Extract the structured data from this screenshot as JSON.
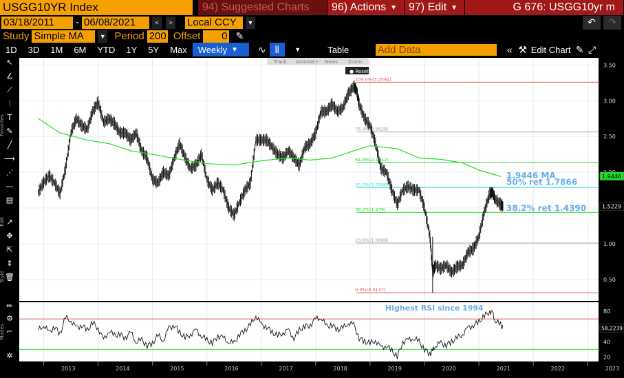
{
  "topbar": {
    "ticker": "USGG10YR Index",
    "suggested": "94) Suggested Charts",
    "actions": "96) Actions",
    "edit": "97) Edit",
    "security": "G 676: USGG10yr m"
  },
  "range": {
    "start": "03/18/2011",
    "end": "06/08/2021",
    "sep": "-",
    "currency": "Local CCY"
  },
  "study": {
    "study_label": "Study",
    "study_value": "Simple MA",
    "period_label": "Period",
    "period_value": "200",
    "offset_label": "Offset",
    "offset_value": "0"
  },
  "timeframes": [
    "1D",
    "3D",
    "1M",
    "6M",
    "YTD",
    "1Y",
    "5Y",
    "Max"
  ],
  "toolbar": {
    "weekly": "Weekly",
    "table": "Table",
    "add_data_placeholder": "Add Data",
    "edit_chart": "Edit Chart"
  },
  "annot_toolbar": {
    "track": "Track",
    "annotate": "Annotate",
    "news": "News",
    "zoom": "Zoom",
    "reset": "Reset"
  },
  "sidebar": {
    "favorites": "Favorites",
    "edit": "Edit",
    "style": "Style",
    "modes": "Modes"
  },
  "chart_data": {
    "type": "line",
    "x_years": [
      "2013",
      "2014",
      "2015",
      "2016",
      "2017",
      "2018",
      "2019",
      "2020",
      "2021",
      "2022",
      "2023"
    ],
    "price_ticks": [
      3.5,
      3.0,
      2.5,
      2.0,
      1.5,
      1.0,
      0.5
    ],
    "price_tick_labels": [
      "3.50",
      "3.00",
      "2.50",
      "2.00",
      "1.50",
      "1.00",
      "0.50"
    ],
    "ylim": [
      0.2,
      3.6
    ],
    "fib_levels": [
      {
        "label": "100.0%(3.2594)",
        "value": 3.2594,
        "color": "#e05050"
      },
      {
        "label": "76.4%(2.5628)",
        "value": 2.5628,
        "color": "#aaaaaa"
      },
      {
        "label": "61.8%(2.1342)",
        "value": 2.1342,
        "color": "#22dd22"
      },
      {
        "label": "50.0%(1.7866)",
        "value": 1.7866,
        "color": "#40e0e0"
      },
      {
        "label": "38.2%(1.439)",
        "value": 1.439,
        "color": "#22dd22"
      },
      {
        "label": "23.6%(1.0089)",
        "value": 1.0089,
        "color": "#aaaaaa"
      },
      {
        "label": "0.0%(0.3137)",
        "value": 0.3137,
        "color": "#e05050"
      }
    ],
    "price_series": [
      [
        2012.9,
        1.72
      ],
      [
        2013.0,
        1.86
      ],
      [
        2013.1,
        1.95
      ],
      [
        2013.2,
        1.85
      ],
      [
        2013.3,
        1.7
      ],
      [
        2013.4,
        2.05
      ],
      [
        2013.5,
        2.55
      ],
      [
        2013.6,
        2.75
      ],
      [
        2013.7,
        2.65
      ],
      [
        2013.8,
        2.6
      ],
      [
        2013.9,
        2.85
      ],
      [
        2014.0,
        2.98
      ],
      [
        2014.1,
        2.7
      ],
      [
        2014.2,
        2.75
      ],
      [
        2014.3,
        2.68
      ],
      [
        2014.4,
        2.55
      ],
      [
        2014.5,
        2.55
      ],
      [
        2014.6,
        2.45
      ],
      [
        2014.7,
        2.55
      ],
      [
        2014.8,
        2.3
      ],
      [
        2014.9,
        2.2
      ],
      [
        2015.0,
        1.9
      ],
      [
        2015.1,
        1.85
      ],
      [
        2015.2,
        2.0
      ],
      [
        2015.3,
        1.95
      ],
      [
        2015.4,
        2.2
      ],
      [
        2015.5,
        2.4
      ],
      [
        2015.6,
        2.2
      ],
      [
        2015.7,
        2.05
      ],
      [
        2015.8,
        2.1
      ],
      [
        2015.9,
        2.25
      ],
      [
        2016.0,
        1.9
      ],
      [
        2016.1,
        1.75
      ],
      [
        2016.2,
        1.85
      ],
      [
        2016.3,
        1.75
      ],
      [
        2016.4,
        1.5
      ],
      [
        2016.5,
        1.4
      ],
      [
        2016.6,
        1.58
      ],
      [
        2016.7,
        1.75
      ],
      [
        2016.8,
        1.85
      ],
      [
        2016.9,
        2.45
      ],
      [
        2017.0,
        2.45
      ],
      [
        2017.1,
        2.45
      ],
      [
        2017.2,
        2.35
      ],
      [
        2017.3,
        2.25
      ],
      [
        2017.4,
        2.2
      ],
      [
        2017.5,
        2.3
      ],
      [
        2017.6,
        2.2
      ],
      [
        2017.7,
        2.1
      ],
      [
        2017.8,
        2.35
      ],
      [
        2017.9,
        2.4
      ],
      [
        2018.0,
        2.55
      ],
      [
        2018.1,
        2.85
      ],
      [
        2018.2,
        2.85
      ],
      [
        2018.3,
        2.95
      ],
      [
        2018.4,
        2.85
      ],
      [
        2018.5,
        2.9
      ],
      [
        2018.6,
        3.1
      ],
      [
        2018.7,
        3.2
      ],
      [
        2018.75,
        3.15
      ],
      [
        2018.8,
        2.95
      ],
      [
        2018.9,
        2.75
      ],
      [
        2019.0,
        2.65
      ],
      [
        2019.1,
        2.4
      ],
      [
        2019.2,
        2.05
      ],
      [
        2019.3,
        2.0
      ],
      [
        2019.4,
        1.75
      ],
      [
        2019.5,
        1.55
      ],
      [
        2019.6,
        1.75
      ],
      [
        2019.7,
        1.8
      ],
      [
        2019.8,
        1.75
      ],
      [
        2019.9,
        1.75
      ],
      [
        2020.0,
        1.5
      ],
      [
        2020.1,
        1.1
      ],
      [
        2020.15,
        0.6
      ],
      [
        2020.2,
        0.7
      ],
      [
        2020.3,
        0.65
      ],
      [
        2020.4,
        0.7
      ],
      [
        2020.5,
        0.6
      ],
      [
        2020.6,
        0.68
      ],
      [
        2020.7,
        0.7
      ],
      [
        2020.8,
        0.88
      ],
      [
        2020.9,
        0.93
      ],
      [
        2021.0,
        1.1
      ],
      [
        2021.1,
        1.45
      ],
      [
        2021.2,
        1.7
      ],
      [
        2021.25,
        1.72
      ],
      [
        2021.3,
        1.62
      ],
      [
        2021.4,
        1.55
      ],
      [
        2021.45,
        1.52
      ]
    ],
    "ma_series": [
      [
        2012.9,
        2.75
      ],
      [
        2013.3,
        2.55
      ],
      [
        2013.8,
        2.45
      ],
      [
        2014.2,
        2.4
      ],
      [
        2014.6,
        2.3
      ],
      [
        2015.0,
        2.25
      ],
      [
        2015.5,
        2.18
      ],
      [
        2016.0,
        2.12
      ],
      [
        2016.5,
        2.1
      ],
      [
        2017.0,
        2.16
      ],
      [
        2017.5,
        2.2
      ],
      [
        2017.9,
        2.17
      ],
      [
        2018.3,
        2.2
      ],
      [
        2018.7,
        2.3
      ],
      [
        2019.0,
        2.37
      ],
      [
        2019.5,
        2.33
      ],
      [
        2019.9,
        2.2
      ],
      [
        2020.3,
        2.18
      ],
      [
        2020.7,
        2.13
      ],
      [
        2021.0,
        2.03
      ],
      [
        2021.4,
        1.94
      ]
    ],
    "annotations": [
      {
        "text": "1.9446 MA",
        "value": 1.9446
      },
      {
        "text": "50% ret 1.7866",
        "value": 1.7866
      },
      {
        "text": "38.2% ret 1.4390",
        "value": 1.439
      }
    ],
    "last_labels": [
      {
        "text": "1.9446",
        "value": 1.9446,
        "bg": "#22dd22",
        "fg": "#000"
      },
      {
        "text": "1.5229",
        "value": 1.5229,
        "bg": "#000",
        "fg": "#fff"
      }
    ],
    "rsi": {
      "ticks": [
        80,
        60,
        40,
        20
      ],
      "tick_labels": [
        "80",
        "60",
        "40",
        "20"
      ],
      "ylim": [
        14,
        92
      ],
      "upper": 70,
      "lower": 30,
      "last": "58.2239",
      "annotation": "Highest RSI since 1994",
      "series": [
        [
          2012.9,
          55
        ],
        [
          2013.0,
          62
        ],
        [
          2013.1,
          52
        ],
        [
          2013.2,
          60
        ],
        [
          2013.3,
          50
        ],
        [
          2013.4,
          72
        ],
        [
          2013.5,
          68
        ],
        [
          2013.6,
          58
        ],
        [
          2013.7,
          62
        ],
        [
          2013.8,
          55
        ],
        [
          2013.9,
          65
        ],
        [
          2014.0,
          58
        ],
        [
          2014.1,
          42
        ],
        [
          2014.2,
          55
        ],
        [
          2014.3,
          48
        ],
        [
          2014.4,
          50
        ],
        [
          2014.5,
          45
        ],
        [
          2014.6,
          52
        ],
        [
          2014.7,
          40
        ],
        [
          2014.8,
          42
        ],
        [
          2014.9,
          35
        ],
        [
          2015.0,
          38
        ],
        [
          2015.1,
          48
        ],
        [
          2015.2,
          42
        ],
        [
          2015.3,
          58
        ],
        [
          2015.4,
          62
        ],
        [
          2015.5,
          52
        ],
        [
          2015.6,
          45
        ],
        [
          2015.7,
          50
        ],
        [
          2015.8,
          55
        ],
        [
          2015.9,
          48
        ],
        [
          2016.0,
          42
        ],
        [
          2016.1,
          38
        ],
        [
          2016.2,
          48
        ],
        [
          2016.3,
          45
        ],
        [
          2016.4,
          40
        ],
        [
          2016.5,
          38
        ],
        [
          2016.6,
          50
        ],
        [
          2016.7,
          55
        ],
        [
          2016.8,
          62
        ],
        [
          2016.9,
          75
        ],
        [
          2017.0,
          62
        ],
        [
          2017.1,
          60
        ],
        [
          2017.2,
          52
        ],
        [
          2017.3,
          48
        ],
        [
          2017.4,
          52
        ],
        [
          2017.5,
          55
        ],
        [
          2017.6,
          45
        ],
        [
          2017.7,
          55
        ],
        [
          2017.8,
          60
        ],
        [
          2017.9,
          62
        ],
        [
          2018.0,
          70
        ],
        [
          2018.1,
          72
        ],
        [
          2018.2,
          60
        ],
        [
          2018.3,
          62
        ],
        [
          2018.4,
          56
        ],
        [
          2018.5,
          58
        ],
        [
          2018.6,
          65
        ],
        [
          2018.7,
          62
        ],
        [
          2018.8,
          45
        ],
        [
          2018.9,
          40
        ],
        [
          2019.0,
          38
        ],
        [
          2019.1,
          42
        ],
        [
          2019.2,
          32
        ],
        [
          2019.3,
          35
        ],
        [
          2019.4,
          28
        ],
        [
          2019.5,
          20
        ],
        [
          2019.6,
          40
        ],
        [
          2019.7,
          42
        ],
        [
          2019.8,
          45
        ],
        [
          2019.9,
          40
        ],
        [
          2020.0,
          30
        ],
        [
          2020.1,
          24
        ],
        [
          2020.15,
          28
        ],
        [
          2020.2,
          35
        ],
        [
          2020.3,
          38
        ],
        [
          2020.4,
          36
        ],
        [
          2020.5,
          40
        ],
        [
          2020.6,
          45
        ],
        [
          2020.7,
          50
        ],
        [
          2020.8,
          58
        ],
        [
          2020.9,
          62
        ],
        [
          2021.0,
          66
        ],
        [
          2021.1,
          74
        ],
        [
          2021.2,
          80
        ],
        [
          2021.25,
          78
        ],
        [
          2021.3,
          68
        ],
        [
          2021.4,
          62
        ],
        [
          2021.45,
          58
        ]
      ]
    }
  }
}
